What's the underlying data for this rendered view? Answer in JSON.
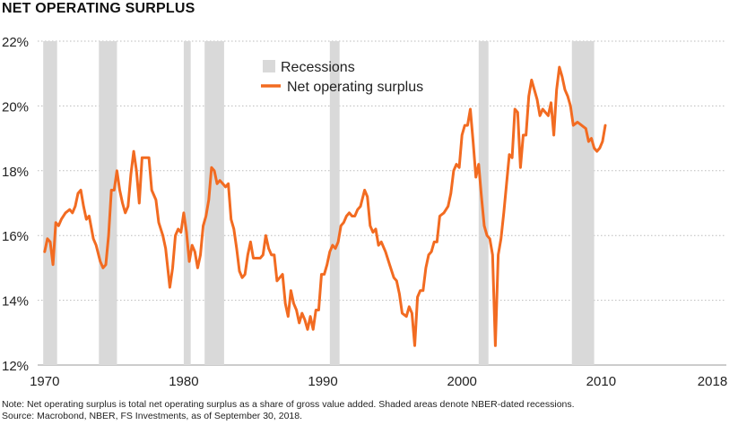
{
  "title": "NET OPERATING SURPLUS",
  "note": "Note: Net operating surplus is total net operating surplus as a share of gross value added. Shaded areas denote NBER-dated recessions.",
  "source": "Source: Macrobond, NBER, FS Investments, as of September 30, 2018.",
  "colors": {
    "line": "#f26b21",
    "recession": "#d9d9d9",
    "grid": "#bbbbbb"
  },
  "chart_data": {
    "type": "line",
    "title": "NET OPERATING SURPLUS",
    "xlabel": "",
    "ylabel": "",
    "xlim": [
      1969.5,
      2019.0
    ],
    "ylim": [
      12,
      22
    ],
    "y_ticks": [
      12,
      14,
      16,
      18,
      20,
      22
    ],
    "y_tick_labels": [
      "12%",
      "14%",
      "16%",
      "18%",
      "20%",
      "22%"
    ],
    "x_ticks": [
      1970,
      1980,
      1990,
      2000,
      2010,
      2018
    ],
    "x_tick_labels": [
      "1970",
      "1980",
      "1990",
      "2000",
      "2010",
      "2018"
    ],
    "grid": "horizontal",
    "legend": {
      "position": "top-center",
      "entries": [
        {
          "label": "Recessions",
          "kind": "shade"
        },
        {
          "label": "Net operating surplus",
          "kind": "line"
        }
      ]
    },
    "recessions": [
      [
        1969.9,
        1970.9
      ],
      [
        1973.9,
        1975.2
      ],
      [
        1980.0,
        1980.5
      ],
      [
        1981.5,
        1982.9
      ],
      [
        1990.5,
        1991.2
      ],
      [
        2001.2,
        2001.9
      ],
      [
        2007.9,
        2009.5
      ]
    ],
    "series": [
      {
        "name": "Net operating surplus",
        "points": [
          [
            1970.0,
            15.5
          ],
          [
            1970.2,
            15.9
          ],
          [
            1970.4,
            15.8
          ],
          [
            1970.6,
            15.1
          ],
          [
            1970.8,
            16.4
          ],
          [
            1971.0,
            16.3
          ],
          [
            1971.2,
            16.5
          ],
          [
            1971.5,
            16.7
          ],
          [
            1971.8,
            16.8
          ],
          [
            1972.0,
            16.7
          ],
          [
            1972.2,
            16.9
          ],
          [
            1972.4,
            17.3
          ],
          [
            1972.6,
            17.4
          ],
          [
            1972.8,
            16.9
          ],
          [
            1973.0,
            16.5
          ],
          [
            1973.2,
            16.6
          ],
          [
            1973.5,
            15.9
          ],
          [
            1973.7,
            15.7
          ],
          [
            1974.0,
            15.2
          ],
          [
            1974.2,
            15.0
          ],
          [
            1974.4,
            15.1
          ],
          [
            1974.6,
            16.0
          ],
          [
            1974.8,
            17.4
          ],
          [
            1975.0,
            17.4
          ],
          [
            1975.2,
            18.0
          ],
          [
            1975.4,
            17.4
          ],
          [
            1975.6,
            17.0
          ],
          [
            1975.8,
            16.7
          ],
          [
            1976.0,
            16.9
          ],
          [
            1976.2,
            17.9
          ],
          [
            1976.4,
            18.6
          ],
          [
            1976.6,
            18.0
          ],
          [
            1976.8,
            17.0
          ],
          [
            1977.0,
            18.4
          ],
          [
            1977.2,
            18.4
          ],
          [
            1977.5,
            18.4
          ],
          [
            1977.7,
            17.4
          ],
          [
            1978.0,
            17.1
          ],
          [
            1978.2,
            16.4
          ],
          [
            1978.5,
            16.0
          ],
          [
            1978.7,
            15.6
          ],
          [
            1979.0,
            14.4
          ],
          [
            1979.2,
            15.0
          ],
          [
            1979.4,
            16.0
          ],
          [
            1979.6,
            16.2
          ],
          [
            1979.8,
            16.1
          ],
          [
            1980.0,
            16.7
          ],
          [
            1980.2,
            16.1
          ],
          [
            1980.4,
            15.2
          ],
          [
            1980.6,
            15.7
          ],
          [
            1980.8,
            15.5
          ],
          [
            1981.0,
            15.0
          ],
          [
            1981.2,
            15.4
          ],
          [
            1981.4,
            16.3
          ],
          [
            1981.6,
            16.6
          ],
          [
            1981.8,
            17.1
          ],
          [
            1982.0,
            18.1
          ],
          [
            1982.2,
            18.0
          ],
          [
            1982.4,
            17.6
          ],
          [
            1982.6,
            17.7
          ],
          [
            1982.8,
            17.6
          ],
          [
            1983.0,
            17.5
          ],
          [
            1983.2,
            17.6
          ],
          [
            1983.4,
            16.5
          ],
          [
            1983.6,
            16.2
          ],
          [
            1983.8,
            15.6
          ],
          [
            1984.0,
            14.9
          ],
          [
            1984.2,
            14.7
          ],
          [
            1984.4,
            14.8
          ],
          [
            1984.6,
            15.4
          ],
          [
            1984.8,
            15.8
          ],
          [
            1985.0,
            15.3
          ],
          [
            1985.2,
            15.3
          ],
          [
            1985.5,
            15.3
          ],
          [
            1985.7,
            15.4
          ],
          [
            1985.9,
            16.0
          ],
          [
            1986.1,
            15.6
          ],
          [
            1986.3,
            15.4
          ],
          [
            1986.5,
            15.4
          ],
          [
            1986.7,
            14.6
          ],
          [
            1986.9,
            14.7
          ],
          [
            1987.1,
            14.8
          ],
          [
            1987.3,
            13.9
          ],
          [
            1987.5,
            13.5
          ],
          [
            1987.7,
            14.3
          ],
          [
            1987.9,
            13.9
          ],
          [
            1988.1,
            13.7
          ],
          [
            1988.3,
            13.3
          ],
          [
            1988.5,
            13.6
          ],
          [
            1988.7,
            13.4
          ],
          [
            1988.9,
            13.1
          ],
          [
            1989.1,
            13.5
          ],
          [
            1989.3,
            13.1
          ],
          [
            1989.5,
            13.7
          ],
          [
            1989.7,
            13.7
          ],
          [
            1989.9,
            14.8
          ],
          [
            1990.1,
            14.8
          ],
          [
            1990.3,
            15.1
          ],
          [
            1990.5,
            15.5
          ],
          [
            1990.7,
            15.7
          ],
          [
            1990.9,
            15.6
          ],
          [
            1991.1,
            15.8
          ],
          [
            1991.3,
            16.3
          ],
          [
            1991.5,
            16.4
          ],
          [
            1991.7,
            16.6
          ],
          [
            1991.9,
            16.7
          ],
          [
            1992.1,
            16.6
          ],
          [
            1992.3,
            16.6
          ],
          [
            1992.5,
            16.8
          ],
          [
            1992.7,
            16.9
          ],
          [
            1993.0,
            17.4
          ],
          [
            1993.2,
            17.2
          ],
          [
            1993.4,
            16.3
          ],
          [
            1993.6,
            16.1
          ],
          [
            1993.8,
            16.2
          ],
          [
            1994.0,
            15.7
          ],
          [
            1994.2,
            15.8
          ],
          [
            1994.5,
            15.5
          ],
          [
            1994.8,
            15.1
          ],
          [
            1995.1,
            14.7
          ],
          [
            1995.3,
            14.6
          ],
          [
            1995.5,
            14.2
          ],
          [
            1995.7,
            13.6
          ],
          [
            1996.0,
            13.5
          ],
          [
            1996.2,
            13.8
          ],
          [
            1996.4,
            13.6
          ],
          [
            1996.6,
            12.6
          ],
          [
            1996.8,
            14.1
          ],
          [
            1997.0,
            14.3
          ],
          [
            1997.2,
            14.3
          ],
          [
            1997.4,
            15.0
          ],
          [
            1997.6,
            15.4
          ],
          [
            1997.8,
            15.5
          ],
          [
            1998.0,
            15.8
          ],
          [
            1998.2,
            15.8
          ],
          [
            1998.4,
            16.6
          ],
          [
            1998.7,
            16.7
          ],
          [
            1999.0,
            16.9
          ],
          [
            1999.2,
            17.3
          ],
          [
            1999.4,
            18.0
          ],
          [
            1999.6,
            18.2
          ],
          [
            1999.8,
            18.1
          ],
          [
            2000.0,
            19.1
          ],
          [
            2000.2,
            19.4
          ],
          [
            2000.4,
            19.4
          ],
          [
            2000.6,
            19.9
          ],
          [
            2000.8,
            18.9
          ],
          [
            2001.0,
            17.8
          ],
          [
            2001.2,
            18.2
          ],
          [
            2001.4,
            17.2
          ],
          [
            2001.6,
            16.3
          ],
          [
            2001.8,
            16.0
          ],
          [
            2002.0,
            15.9
          ],
          [
            2002.2,
            15.4
          ],
          [
            2002.4,
            12.6
          ],
          [
            2002.6,
            15.4
          ],
          [
            2002.8,
            15.9
          ],
          [
            2003.0,
            16.7
          ],
          [
            2003.2,
            17.6
          ],
          [
            2003.4,
            18.5
          ],
          [
            2003.6,
            18.4
          ],
          [
            2003.8,
            19.9
          ],
          [
            2004.0,
            19.8
          ],
          [
            2004.2,
            18.1
          ],
          [
            2004.4,
            19.1
          ],
          [
            2004.6,
            19.1
          ],
          [
            2004.8,
            20.3
          ],
          [
            2005.0,
            20.8
          ],
          [
            2005.2,
            20.5
          ],
          [
            2005.4,
            20.2
          ],
          [
            2005.6,
            19.7
          ],
          [
            2005.8,
            19.9
          ],
          [
            2006.0,
            19.8
          ],
          [
            2006.2,
            19.7
          ],
          [
            2006.4,
            20.1
          ],
          [
            2006.6,
            19.1
          ],
          [
            2006.8,
            20.5
          ],
          [
            2007.0,
            21.2
          ],
          [
            2007.2,
            20.9
          ],
          [
            2007.4,
            20.5
          ],
          [
            2007.6,
            20.3
          ],
          [
            2007.8,
            20.0
          ],
          [
            2008.0,
            19.4
          ],
          [
            2008.3,
            19.5
          ],
          [
            2008.6,
            19.4
          ],
          [
            2008.9,
            19.3
          ],
          [
            2009.1,
            18.9
          ],
          [
            2009.3,
            19.0
          ],
          [
            2009.5,
            18.7
          ],
          [
            2009.7,
            18.6
          ],
          [
            2009.9,
            18.7
          ],
          [
            2010.1,
            18.9
          ],
          [
            2010.3,
            19.4
          ]
        ]
      }
    ]
  }
}
